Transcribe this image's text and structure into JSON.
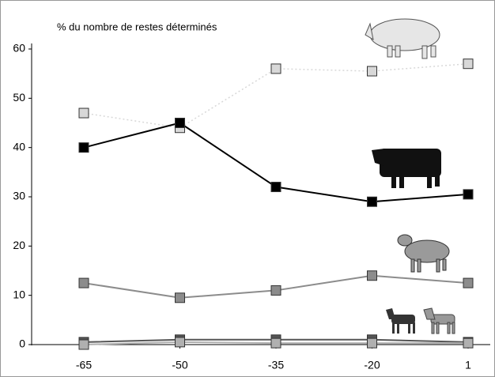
{
  "chart_data": {
    "type": "line",
    "title": "% du nombre de restes déterminés",
    "categories": [
      "-65",
      "-50",
      "-35",
      "-20",
      "1"
    ],
    "ylim": [
      0,
      60
    ],
    "yticks": [
      0,
      10,
      20,
      30,
      40,
      50,
      60
    ],
    "series": [
      {
        "color": "#d8d8d8",
        "line_style": "dotted",
        "values": [
          47,
          44,
          56,
          55.5,
          57
        ]
      },
      {
        "color": "#000000",
        "line_style": "solid",
        "values": [
          40,
          45,
          32,
          29,
          30.5
        ]
      },
      {
        "color": "#8c8c8c",
        "line_style": "solid",
        "values": [
          12.5,
          9.5,
          11,
          14,
          12.5
        ]
      },
      {
        "color": "#555555",
        "line_style": "solid",
        "values": [
          0.5,
          1,
          1,
          1,
          0.5
        ]
      },
      {
        "color": "#b0b0b0",
        "line_style": "solid",
        "values": [
          0,
          0.5,
          0.3,
          0.3,
          0.3
        ]
      }
    ]
  }
}
